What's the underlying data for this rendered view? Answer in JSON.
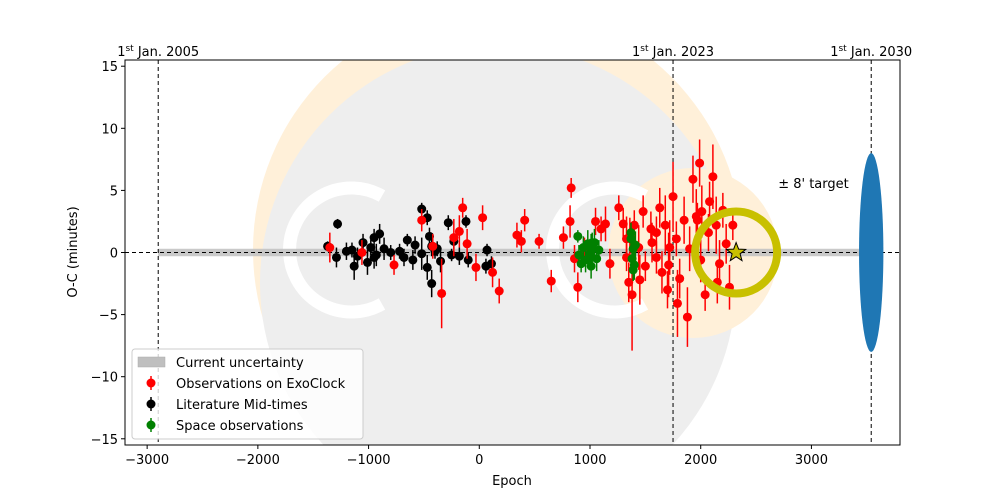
{
  "chart_data": {
    "type": "scatter",
    "xlabel": "Epoch",
    "ylabel": "O-C (minutes)",
    "xlim": [
      -3200,
      3800
    ],
    "ylim": [
      -15.5,
      15.5
    ],
    "xticks": [
      -3000,
      -2000,
      -1000,
      0,
      1000,
      2000,
      3000
    ],
    "yticks": [
      -15,
      -10,
      -5,
      0,
      5,
      10,
      15
    ],
    "grid": false,
    "legend_position": "lower-left",
    "colors": {
      "exoclock": "#ff0000",
      "literature": "#000000",
      "space": "#008000",
      "uncertainty": "#bfbfbf",
      "target_ring": "#c8c000",
      "ellipse": "#1f77b4",
      "logo_light": "#fff0d9",
      "logo_grey": "#eeeeee"
    },
    "date_markers": [
      {
        "epoch": -2900,
        "label_sup": "st",
        "label_pre": "1",
        "label_post": " Jan. 2005"
      },
      {
        "epoch": 1750,
        "label_sup": "st",
        "label_pre": "1",
        "label_post": " Jan. 2023"
      },
      {
        "epoch": 3540,
        "label_sup": "st",
        "label_pre": "1",
        "label_post": " Jan. 2030"
      }
    ],
    "uncertainty_band": {
      "x": [
        -2900,
        3540
      ],
      "half_width_minutes": 0.3
    },
    "target_annotation": {
      "text": "± 8' target",
      "x": 2700,
      "y": 5.2
    },
    "target_ellipse": {
      "x": 3540,
      "y": 0,
      "half_height": 8,
      "half_width_epoch": 110
    },
    "next_transit": {
      "x": 2320,
      "y": 0,
      "ring_radius_minutes": 3.3
    },
    "legend": [
      {
        "key": "uncertainty",
        "label": "Current uncertainty"
      },
      {
        "key": "exoclock",
        "label": "Observations on ExoClock"
      },
      {
        "key": "literature",
        "label": "Literature Mid-times"
      },
      {
        "key": "space",
        "label": "Space observations"
      }
    ],
    "series": [
      {
        "name": "Literature Mid-times",
        "key": "literature",
        "points": [
          [
            -1280,
            2.3,
            0.4
          ],
          [
            -1370,
            0.5,
            0.4
          ],
          [
            -1150,
            0.2,
            0.6
          ],
          [
            -1050,
            0.8,
            0.7
          ],
          [
            -980,
            0.4,
            0.6
          ],
          [
            -1100,
            -0.3,
            0.7
          ],
          [
            -1130,
            -1.1,
            1.1
          ],
          [
            -950,
            1.2,
            0.7
          ],
          [
            -900,
            1.5,
            0.8
          ],
          [
            -930,
            -0.2,
            0.9
          ],
          [
            -1010,
            -0.8,
            1.0
          ],
          [
            -860,
            0.3,
            0.9
          ],
          [
            -800,
            0.0,
            0.6
          ],
          [
            -720,
            0.1,
            0.6
          ],
          [
            -680,
            -0.4,
            0.7
          ],
          [
            -650,
            1.0,
            0.5
          ],
          [
            -600,
            -0.6,
            0.8
          ],
          [
            -580,
            0.6,
            0.7
          ],
          [
            -520,
            3.5,
            0.5
          ],
          [
            -470,
            2.8,
            0.6
          ],
          [
            -450,
            1.3,
            0.7
          ],
          [
            -430,
            0.5,
            0.8
          ],
          [
            -470,
            -1.2,
            1.0
          ],
          [
            -430,
            -2.5,
            1.1
          ],
          [
            -380,
            0.3,
            0.6
          ],
          [
            -350,
            -0.7,
            0.9
          ],
          [
            -280,
            2.4,
            0.6
          ],
          [
            -250,
            -0.2,
            0.5
          ],
          [
            -230,
            0.9,
            0.6
          ],
          [
            -120,
            2.5,
            0.5
          ],
          [
            -180,
            -0.3,
            0.7
          ],
          [
            -100,
            -0.6,
            0.6
          ],
          [
            70,
            0.2,
            0.5
          ],
          [
            60,
            -1.1,
            0.6
          ],
          [
            110,
            -0.9,
            0.6
          ],
          [
            -1290,
            -0.4,
            0.8
          ],
          [
            -1200,
            0.1,
            0.7
          ],
          [
            -950,
            -0.4,
            0.9
          ],
          [
            -520,
            -0.1,
            1.3
          ],
          [
            -400,
            0.1,
            0.6
          ]
        ]
      },
      {
        "name": "Observations on ExoClock",
        "key": "exoclock",
        "points": [
          [
            -1350,
            0.4,
            1.2
          ],
          [
            -1060,
            0.0,
            1.0
          ],
          [
            -770,
            -1.0,
            0.8
          ],
          [
            -520,
            2.6,
            0.9
          ],
          [
            -420,
            0.5,
            1.0
          ],
          [
            -340,
            -3.3,
            2.8
          ],
          [
            -230,
            1.2,
            1.5
          ],
          [
            -180,
            1.7,
            1.3
          ],
          [
            -150,
            3.6,
            0.8
          ],
          [
            -110,
            0.7,
            1.2
          ],
          [
            -30,
            -1.2,
            1.1
          ],
          [
            30,
            2.8,
            1.0
          ],
          [
            120,
            -1.6,
            1.2
          ],
          [
            180,
            -3.1,
            1.0
          ],
          [
            340,
            1.4,
            1.0
          ],
          [
            380,
            0.9,
            0.9
          ],
          [
            410,
            2.6,
            0.9
          ],
          [
            540,
            0.9,
            0.6
          ],
          [
            650,
            -2.3,
            0.9
          ],
          [
            760,
            1.2,
            0.9
          ],
          [
            820,
            2.5,
            1.3
          ],
          [
            830,
            5.2,
            0.8
          ],
          [
            860,
            -0.5,
            1.1
          ],
          [
            890,
            -2.8,
            1.2
          ],
          [
            950,
            0.2,
            1.0
          ],
          [
            1050,
            2.5,
            1.1
          ],
          [
            1100,
            1.9,
            1.0
          ],
          [
            1140,
            2.3,
            1.4
          ],
          [
            1180,
            -0.9,
            1.2
          ],
          [
            1260,
            3.6,
            1.0
          ],
          [
            1300,
            2.3,
            1.3
          ],
          [
            1330,
            -0.4,
            1.1
          ],
          [
            1350,
            -2.4,
            1.6
          ],
          [
            1360,
            1.3,
            1.5
          ],
          [
            1380,
            -3.4,
            4.5
          ],
          [
            1400,
            2.2,
            1.2
          ],
          [
            1440,
            0.4,
            1.8
          ],
          [
            1480,
            3.3,
            1.3
          ],
          [
            1500,
            -1.1,
            1.2
          ],
          [
            1550,
            1.9,
            1.4
          ],
          [
            1600,
            -0.4,
            1.3
          ],
          [
            1630,
            3.6,
            1.6
          ],
          [
            1650,
            -1.6,
            1.7
          ],
          [
            1680,
            2.2,
            2.4
          ],
          [
            1700,
            -3.0,
            1.5
          ],
          [
            1720,
            0.4,
            2.2
          ],
          [
            1750,
            4.5,
            2.8
          ],
          [
            1780,
            1.1,
            1.4
          ],
          [
            1810,
            -2.1,
            1.6
          ],
          [
            1850,
            2.6,
            1.9
          ],
          [
            1880,
            -5.2,
            2.4
          ],
          [
            1900,
            0.3,
            1.8
          ],
          [
            1930,
            5.9,
            1.9
          ],
          [
            1970,
            2.6,
            1.4
          ],
          [
            2000,
            -0.6,
            1.8
          ],
          [
            2010,
            3.3,
            2.1
          ],
          [
            2040,
            -3.4,
            1.3
          ],
          [
            2070,
            1.6,
            1.5
          ],
          [
            2110,
            6.1,
            2.6
          ],
          [
            2140,
            2.2,
            2.3
          ],
          [
            2170,
            -0.9,
            1.9
          ],
          [
            2200,
            3.4,
            1.4
          ],
          [
            2230,
            0.7,
            1.6
          ],
          [
            2260,
            -2.8,
            1.8
          ],
          [
            2290,
            2.2,
            1.2
          ],
          [
            1600,
            1.6,
            1.3
          ],
          [
            1790,
            -4.1,
            2.7
          ],
          [
            1990,
            7.2,
            1.9
          ],
          [
            2080,
            4.1,
            1.6
          ],
          [
            1330,
            1.1,
            1.8
          ],
          [
            1450,
            -2.2,
            2.0
          ],
          [
            1560,
            0.8,
            1.6
          ],
          [
            1710,
            -1.0,
            2.6
          ],
          [
            2150,
            -2.4,
            1.7
          ],
          [
            1960,
            2.9,
            2.2
          ]
        ]
      },
      {
        "name": "Space observations",
        "key": "space",
        "points": [
          [
            890,
            1.3,
            0.5
          ],
          [
            900,
            -0.2,
            0.8
          ],
          [
            920,
            -0.9,
            0.7
          ],
          [
            940,
            0.4,
            0.9
          ],
          [
            960,
            -0.6,
            1.0
          ],
          [
            980,
            0.7,
            1.1
          ],
          [
            1000,
            -0.1,
            1.2
          ],
          [
            1010,
            -1.1,
            1.0
          ],
          [
            1020,
            0.3,
            1.3
          ],
          [
            1040,
            0.8,
            1.1
          ],
          [
            1060,
            -0.5,
            1.0
          ],
          [
            1080,
            0.2,
            0.8
          ],
          [
            1370,
            1.1,
            0.9
          ],
          [
            1380,
            -0.5,
            1.1
          ],
          [
            1390,
            0.3,
            1.0
          ],
          [
            1400,
            -1.0,
            1.2
          ],
          [
            1410,
            0.6,
            1.1
          ],
          [
            1370,
            1.6,
            0.8
          ],
          [
            1390,
            -1.4,
            0.9
          ],
          [
            1010,
            0.6,
            0.9
          ]
        ]
      }
    ]
  }
}
